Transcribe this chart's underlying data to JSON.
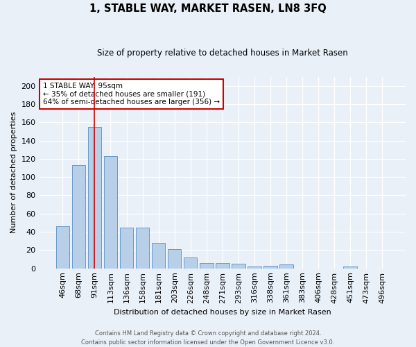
{
  "title": "1, STABLE WAY, MARKET RASEN, LN8 3FQ",
  "subtitle": "Size of property relative to detached houses in Market Rasen",
  "xlabel": "Distribution of detached houses by size in Market Rasen",
  "ylabel": "Number of detached properties",
  "categories": [
    "46sqm",
    "68sqm",
    "91sqm",
    "113sqm",
    "136sqm",
    "158sqm",
    "181sqm",
    "203sqm",
    "226sqm",
    "248sqm",
    "271sqm",
    "293sqm",
    "316sqm",
    "338sqm",
    "361sqm",
    "383sqm",
    "406sqm",
    "428sqm",
    "451sqm",
    "473sqm",
    "496sqm"
  ],
  "values": [
    46,
    113,
    155,
    123,
    45,
    45,
    28,
    21,
    12,
    6,
    6,
    5,
    2,
    3,
    4,
    0,
    0,
    0,
    2,
    0,
    0
  ],
  "bar_color": "#b8cfe8",
  "bar_edge_color": "#6699cc",
  "bg_color": "#eaf0f8",
  "grid_color": "#ffffff",
  "vline_x_idx": 2,
  "vline_color": "#cc0000",
  "annotation_text": "1 STABLE WAY: 95sqm\n← 35% of detached houses are smaller (191)\n64% of semi-detached houses are larger (356) →",
  "annotation_box_color": "#ffffff",
  "annotation_box_edge": "#cc0000",
  "footer": "Contains HM Land Registry data © Crown copyright and database right 2024.\nContains public sector information licensed under the Open Government Licence v3.0.",
  "ylim": [
    0,
    210
  ],
  "yticks": [
    0,
    20,
    40,
    60,
    80,
    100,
    120,
    140,
    160,
    180,
    200
  ]
}
